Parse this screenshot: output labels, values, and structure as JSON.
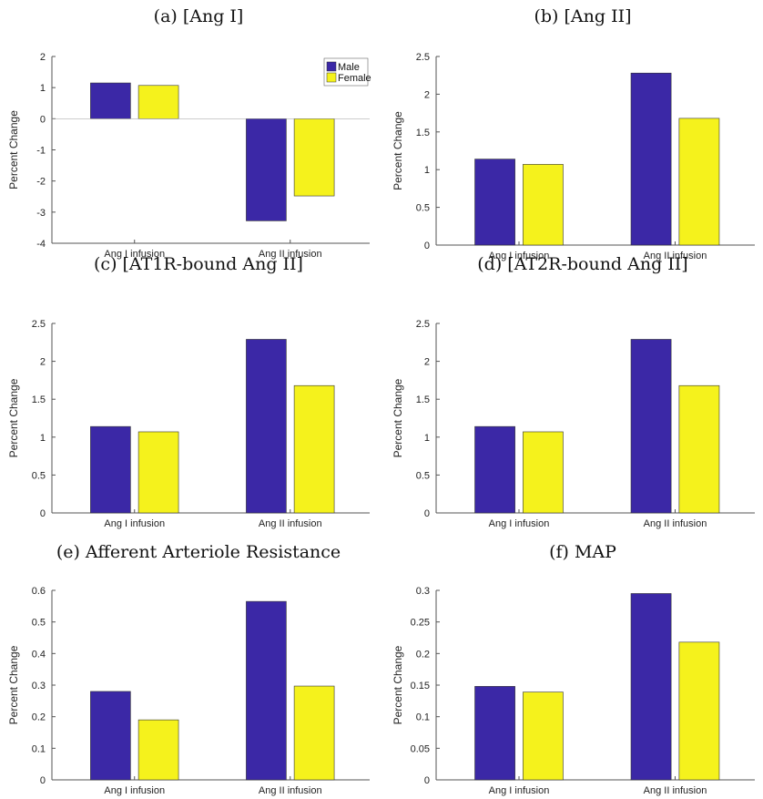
{
  "figure": {
    "series_colors": {
      "Male": "#3b28a6",
      "Female": "#f5f21c"
    }
  },
  "chart_data": [
    {
      "type": "bar",
      "title": "(a) [Ang I]",
      "xlabel": "",
      "ylabel": "Percent Change",
      "categories": [
        "Ang I infusion",
        "Ang II infusion"
      ],
      "series": [
        {
          "name": "Male",
          "values": [
            1.15,
            -3.28
          ]
        },
        {
          "name": "Female",
          "values": [
            1.07,
            -2.48
          ]
        }
      ],
      "ylim": [
        -4,
        2
      ],
      "yticks": [
        -4,
        -3,
        -2,
        -1,
        0,
        1,
        2
      ],
      "ytick_labels": [
        "-4",
        "-3",
        "-2",
        "-1",
        "0",
        "1",
        "2"
      ],
      "legend": true,
      "legend_position": "top-right",
      "grid": false
    },
    {
      "type": "bar",
      "title": "(b) [Ang II]",
      "xlabel": "",
      "ylabel": "Percent Change",
      "categories": [
        "Ang I infusion",
        "Ang II infusion"
      ],
      "series": [
        {
          "name": "Male",
          "values": [
            1.14,
            2.28
          ]
        },
        {
          "name": "Female",
          "values": [
            1.07,
            1.68
          ]
        }
      ],
      "ylim": [
        0,
        2.5
      ],
      "yticks": [
        0,
        0.5,
        1,
        1.5,
        2,
        2.5
      ],
      "ytick_labels": [
        "0",
        "0.5",
        "1",
        "1.5",
        "2",
        "2.5"
      ],
      "legend": false,
      "grid": false
    },
    {
      "type": "bar",
      "title": "(c) [AT1R-bound Ang II]",
      "xlabel": "",
      "ylabel": "Percent Change",
      "categories": [
        "Ang I infusion",
        "Ang II infusion"
      ],
      "series": [
        {
          "name": "Male",
          "values": [
            1.14,
            2.29
          ]
        },
        {
          "name": "Female",
          "values": [
            1.07,
            1.68
          ]
        }
      ],
      "ylim": [
        0,
        2.5
      ],
      "yticks": [
        0,
        0.5,
        1,
        1.5,
        2,
        2.5
      ],
      "ytick_labels": [
        "0",
        "0.5",
        "1",
        "1.5",
        "2",
        "2.5"
      ],
      "legend": false,
      "grid": false
    },
    {
      "type": "bar",
      "title": "(d) [AT2R-bound Ang II]",
      "xlabel": "",
      "ylabel": "Percent Change",
      "categories": [
        "Ang I infusion",
        "Ang II infusion"
      ],
      "series": [
        {
          "name": "Male",
          "values": [
            1.14,
            2.29
          ]
        },
        {
          "name": "Female",
          "values": [
            1.07,
            1.68
          ]
        }
      ],
      "ylim": [
        0,
        2.5
      ],
      "yticks": [
        0,
        0.5,
        1,
        1.5,
        2,
        2.5
      ],
      "ytick_labels": [
        "0",
        "0.5",
        "1",
        "1.5",
        "2",
        "2.5"
      ],
      "legend": false,
      "grid": false
    },
    {
      "type": "bar",
      "title": "(e) Afferent Arteriole Resistance",
      "xlabel": "",
      "ylabel": "Percent Change",
      "categories": [
        "Ang I infusion",
        "Ang II infusion"
      ],
      "series": [
        {
          "name": "Male",
          "values": [
            0.28,
            0.565
          ]
        },
        {
          "name": "Female",
          "values": [
            0.19,
            0.297
          ]
        }
      ],
      "ylim": [
        0,
        0.6
      ],
      "yticks": [
        0,
        0.1,
        0.2,
        0.3,
        0.4,
        0.5,
        0.6
      ],
      "ytick_labels": [
        "0",
        "0.1",
        "0.2",
        "0.3",
        "0.4",
        "0.5",
        "0.6"
      ],
      "legend": false,
      "grid": false
    },
    {
      "type": "bar",
      "title": "(f) MAP",
      "xlabel": "",
      "ylabel": "Percent Change",
      "categories": [
        "Ang I infusion",
        "Ang II infusion"
      ],
      "series": [
        {
          "name": "Male",
          "values": [
            0.148,
            0.295
          ]
        },
        {
          "name": "Female",
          "values": [
            0.139,
            0.218
          ]
        }
      ],
      "ylim": [
        0,
        0.3
      ],
      "yticks": [
        0,
        0.05,
        0.1,
        0.15,
        0.2,
        0.25,
        0.3
      ],
      "ytick_labels": [
        "0",
        "0.05",
        "0.1",
        "0.15",
        "0.2",
        "0.25",
        "0.3"
      ],
      "legend": false,
      "grid": false
    }
  ]
}
